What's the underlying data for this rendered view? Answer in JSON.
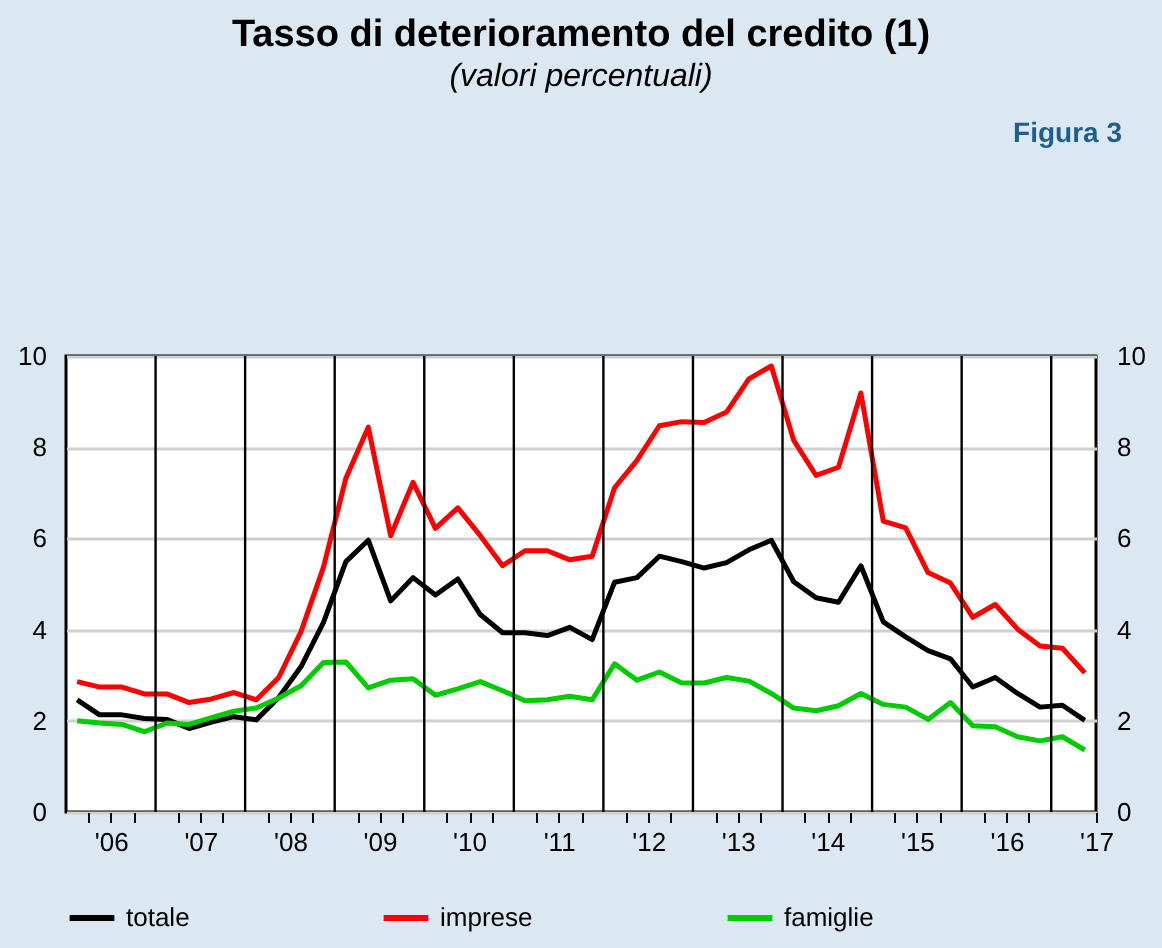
{
  "chart_data": {
    "type": "line",
    "title": "Tasso di deterioramento del credito (1)",
    "subtitle": "(valori percentuali)",
    "annotations": [
      "Figura 3"
    ],
    "x": [
      2005.625,
      2005.875,
      2006.125,
      2006.375,
      2006.625,
      2006.875,
      2007.125,
      2007.375,
      2007.625,
      2007.875,
      2008.125,
      2008.375,
      2008.625,
      2008.875,
      2009.125,
      2009.375,
      2009.625,
      2009.875,
      2010.125,
      2010.375,
      2010.625,
      2010.875,
      2011.125,
      2011.375,
      2011.625,
      2011.875,
      2012.125,
      2012.375,
      2012.625,
      2012.875,
      2013.125,
      2013.375,
      2013.625,
      2013.875,
      2014.125,
      2014.375,
      2014.625,
      2014.875,
      2015.125,
      2015.375,
      2015.625,
      2015.875,
      2016.125,
      2016.375,
      2016.625,
      2016.875
    ],
    "series": [
      {
        "name": "totale",
        "color": "#000000",
        "values": [
          2.46,
          2.13,
          2.13,
          2.05,
          2.03,
          1.83,
          1.97,
          2.09,
          2.02,
          2.51,
          3.19,
          4.16,
          5.49,
          5.96,
          4.63,
          5.14,
          4.76,
          5.11,
          4.33,
          3.93,
          3.93,
          3.87,
          4.05,
          3.78,
          5.04,
          5.14,
          5.61,
          5.49,
          5.35,
          5.47,
          5.75,
          5.96,
          5.05,
          4.7,
          4.6,
          5.4,
          4.17,
          3.84,
          3.54,
          3.36,
          2.74,
          2.95,
          2.6,
          2.3,
          2.34,
          2.01
        ]
      },
      {
        "name": "imprese",
        "color": "#ff0000",
        "values": [
          2.86,
          2.74,
          2.74,
          2.59,
          2.59,
          2.4,
          2.48,
          2.62,
          2.46,
          2.95,
          3.96,
          5.37,
          7.32,
          8.44,
          6.06,
          7.23,
          6.22,
          6.67,
          6.06,
          5.4,
          5.73,
          5.73,
          5.53,
          5.61,
          7.11,
          7.71,
          8.47,
          8.56,
          8.54,
          8.77,
          9.5,
          9.78,
          8.15,
          7.38,
          7.56,
          9.19,
          6.38,
          6.23,
          5.25,
          5.02,
          4.27,
          4.55,
          4.01,
          3.64,
          3.59,
          3.05
        ]
      },
      {
        "name": "famiglie",
        "color": "#00cc00",
        "values": [
          2.0,
          1.95,
          1.92,
          1.76,
          1.95,
          1.92,
          2.07,
          2.21,
          2.28,
          2.5,
          2.77,
          3.28,
          3.29,
          2.72,
          2.89,
          2.92,
          2.56,
          2.7,
          2.86,
          2.66,
          2.44,
          2.46,
          2.54,
          2.46,
          3.25,
          2.89,
          3.07,
          2.83,
          2.83,
          2.95,
          2.87,
          2.6,
          2.28,
          2.22,
          2.33,
          2.6,
          2.36,
          2.3,
          2.03,
          2.4,
          1.89,
          1.87,
          1.65,
          1.56,
          1.65,
          1.36
        ]
      }
    ],
    "xlim": [
      2005.5,
      2017
    ],
    "xticks": [
      {
        "value": 2005.75,
        "label": null
      },
      {
        "value": 2006,
        "label": "'06"
      },
      {
        "value": 2006.25,
        "label": null
      },
      {
        "value": 2006.75,
        "label": null
      },
      {
        "value": 2007,
        "label": "'07"
      },
      {
        "value": 2007.25,
        "label": null
      },
      {
        "value": 2007.75,
        "label": null
      },
      {
        "value": 2008,
        "label": "'08"
      },
      {
        "value": 2008.25,
        "label": null
      },
      {
        "value": 2008.75,
        "label": null
      },
      {
        "value": 2009,
        "label": "'09"
      },
      {
        "value": 2009.25,
        "label": null
      },
      {
        "value": 2009.75,
        "label": null
      },
      {
        "value": 2010,
        "label": "'10"
      },
      {
        "value": 2010.25,
        "label": null
      },
      {
        "value": 2010.75,
        "label": null
      },
      {
        "value": 2011,
        "label": "'11"
      },
      {
        "value": 2011.25,
        "label": null
      },
      {
        "value": 2011.75,
        "label": null
      },
      {
        "value": 2012,
        "label": "'12"
      },
      {
        "value": 2012.25,
        "label": null
      },
      {
        "value": 2012.75,
        "label": null
      },
      {
        "value": 2013,
        "label": "'13"
      },
      {
        "value": 2013.25,
        "label": null
      },
      {
        "value": 2013.75,
        "label": null
      },
      {
        "value": 2014,
        "label": "'14"
      },
      {
        "value": 2014.25,
        "label": null
      },
      {
        "value": 2014.75,
        "label": null
      },
      {
        "value": 2015,
        "label": "'15"
      },
      {
        "value": 2015.25,
        "label": null
      },
      {
        "value": 2015.75,
        "label": null
      },
      {
        "value": 2016,
        "label": "'16"
      },
      {
        "value": 2016.25,
        "label": null
      },
      {
        "value": 2017,
        "label": "'17"
      }
    ],
    "ylim": [
      0,
      10
    ],
    "yticks": [
      0,
      2,
      4,
      6,
      8,
      10
    ],
    "y2lim": [
      0,
      10
    ],
    "y2ticks": [
      0,
      2,
      4,
      6,
      8,
      10
    ],
    "ref_lines": [
      {
        "axis": "x",
        "value": 2006.5,
        "color": "#000000"
      },
      {
        "axis": "x",
        "value": 2007.5,
        "color": "#000000"
      },
      {
        "axis": "x",
        "value": 2008.5,
        "color": "#000000"
      },
      {
        "axis": "x",
        "value": 2009.5,
        "color": "#000000"
      },
      {
        "axis": "x",
        "value": 2010.5,
        "color": "#000000"
      },
      {
        "axis": "x",
        "value": 2011.5,
        "color": "#000000"
      },
      {
        "axis": "x",
        "value": 2012.5,
        "color": "#000000"
      },
      {
        "axis": "x",
        "value": 2013.5,
        "color": "#000000"
      },
      {
        "axis": "x",
        "value": 2014.5,
        "color": "#000000"
      },
      {
        "axis": "x",
        "value": 2015.5,
        "color": "#000000"
      },
      {
        "axis": "x",
        "value": 2016.5,
        "color": "#000000"
      }
    ],
    "grid": "y",
    "legend": "bottom",
    "line_style": "solid"
  }
}
